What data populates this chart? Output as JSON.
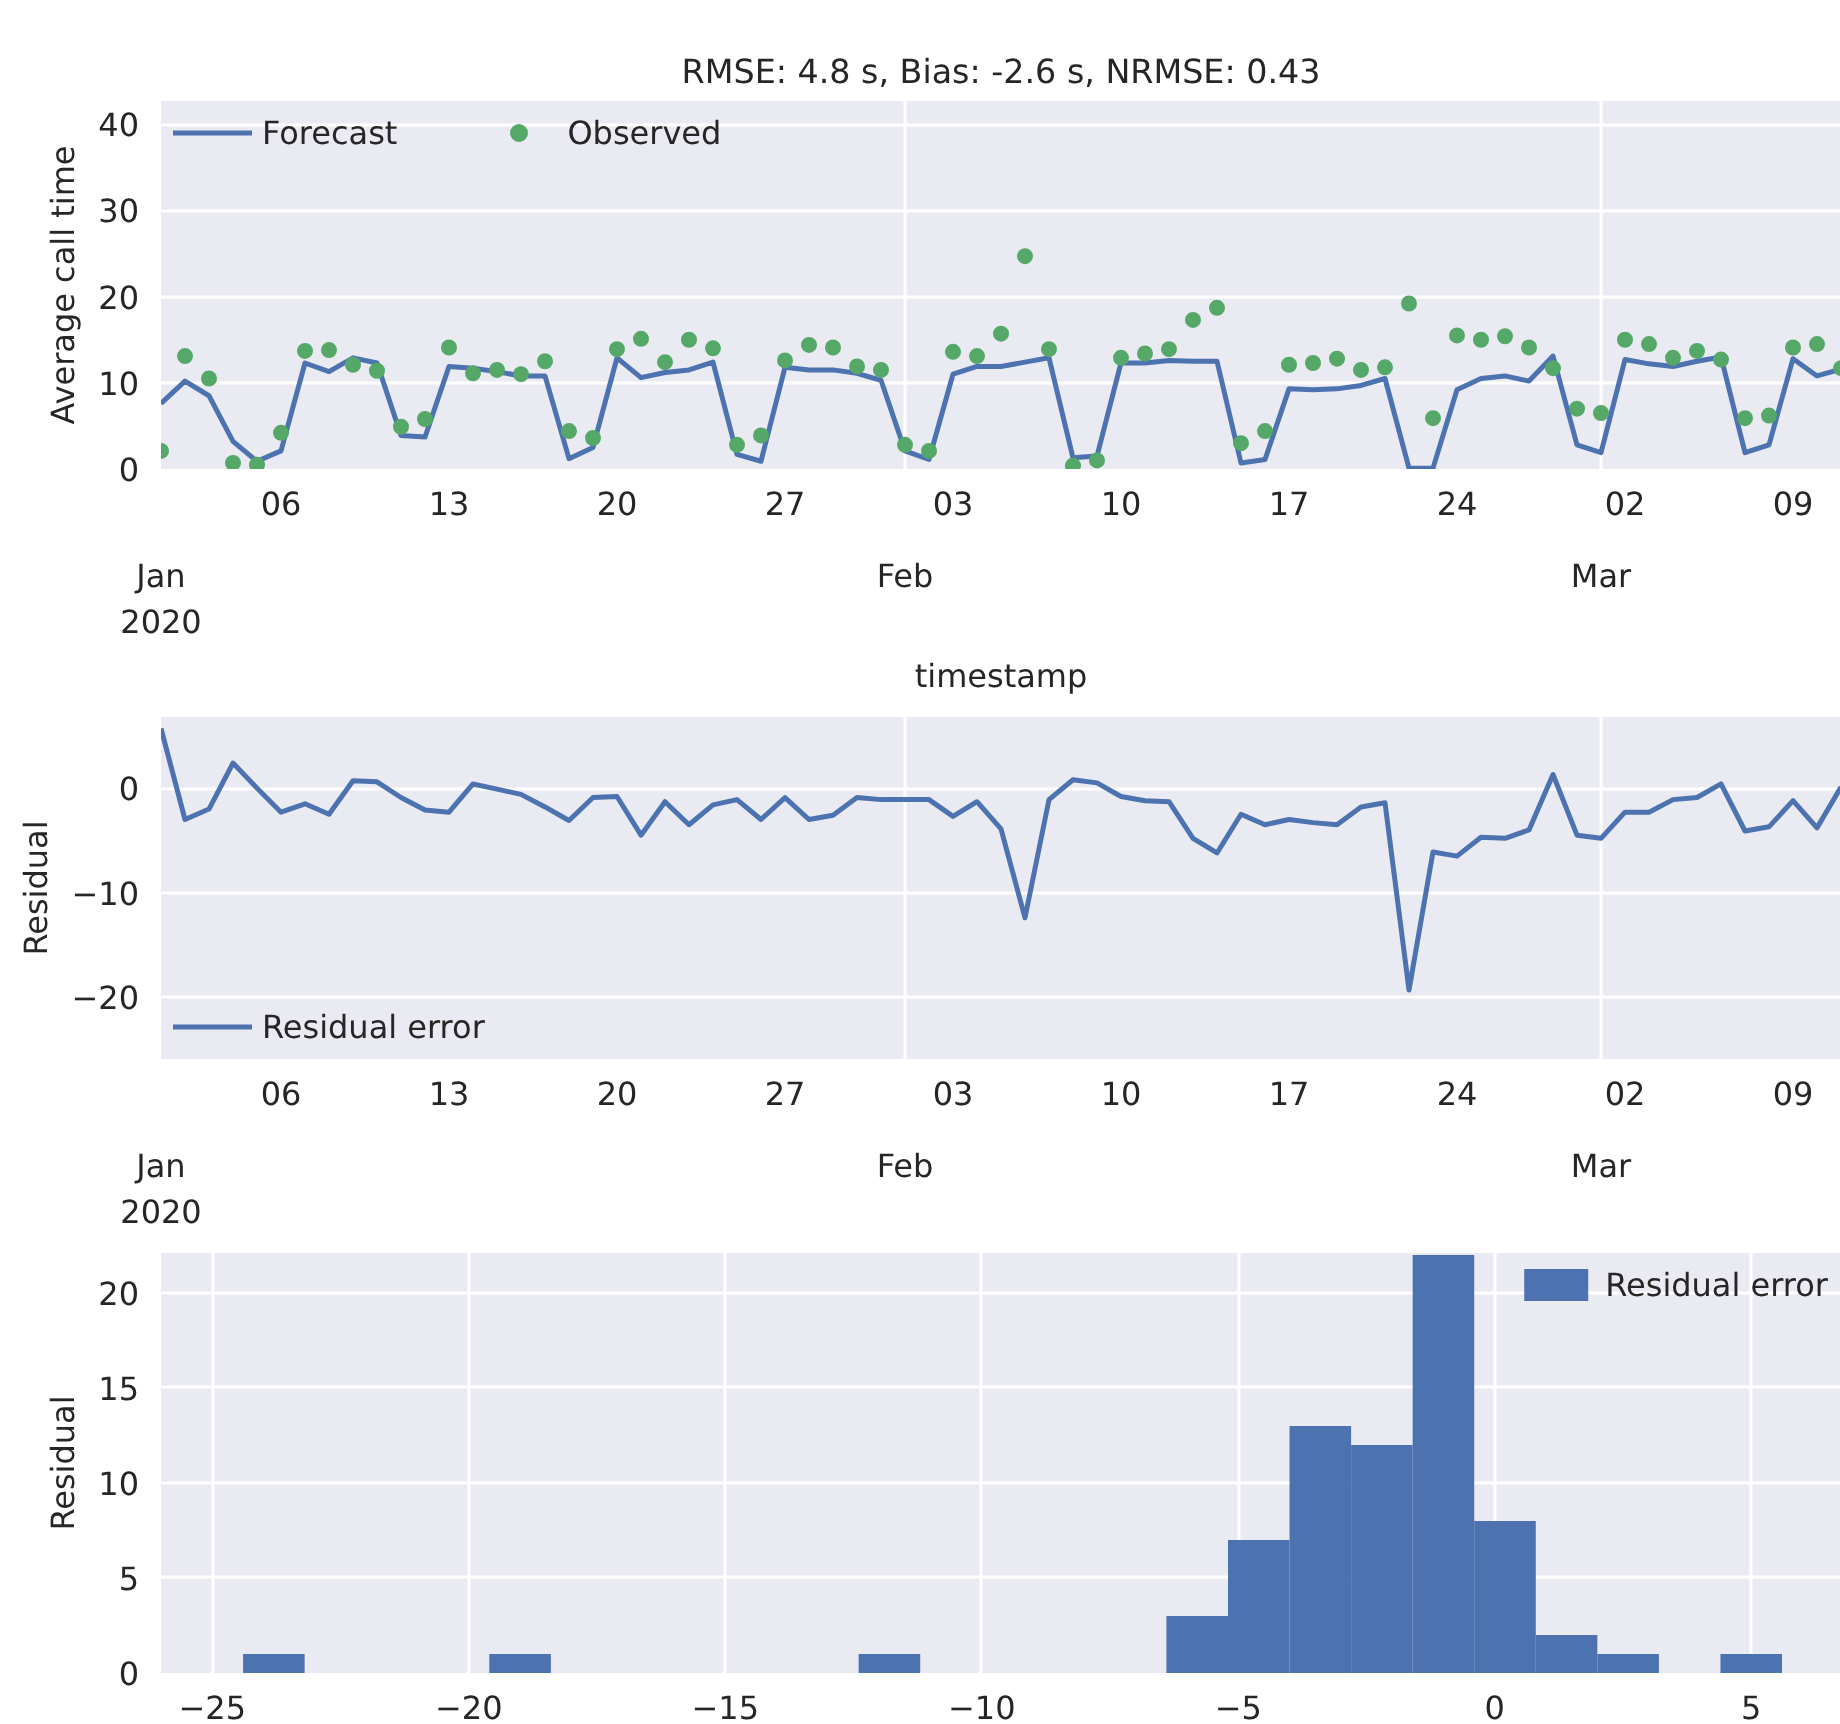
{
  "chart_data": [
    {
      "type": "line",
      "title": "RMSE: 4.8 s, Bias: -2.6 s, NRMSE: 0.43",
      "xlabel": "timestamp",
      "ylabel": "Average call time",
      "x": [
        "2020-01-01",
        "2020-01-02",
        "2020-01-03",
        "2020-01-04",
        "2020-01-05",
        "2020-01-06",
        "2020-01-07",
        "2020-01-08",
        "2020-01-09",
        "2020-01-10",
        "2020-01-11",
        "2020-01-12",
        "2020-01-13",
        "2020-01-14",
        "2020-01-15",
        "2020-01-16",
        "2020-01-17",
        "2020-01-18",
        "2020-01-19",
        "2020-01-20",
        "2020-01-21",
        "2020-01-22",
        "2020-01-23",
        "2020-01-24",
        "2020-01-25",
        "2020-01-26",
        "2020-01-27",
        "2020-01-28",
        "2020-01-29",
        "2020-01-30",
        "2020-01-31",
        "2020-02-01",
        "2020-02-02",
        "2020-02-03",
        "2020-02-04",
        "2020-02-05",
        "2020-02-06",
        "2020-02-07",
        "2020-02-08",
        "2020-02-09",
        "2020-02-10",
        "2020-02-11",
        "2020-02-12",
        "2020-02-13",
        "2020-02-14",
        "2020-02-15",
        "2020-02-16",
        "2020-02-17",
        "2020-02-18",
        "2020-02-19",
        "2020-02-20",
        "2020-02-21",
        "2020-02-22",
        "2020-02-23",
        "2020-02-24",
        "2020-02-25",
        "2020-02-26",
        "2020-02-27",
        "2020-02-28",
        "2020-02-29",
        "2020-03-01",
        "2020-03-02",
        "2020-03-03",
        "2020-03-04",
        "2020-03-05",
        "2020-03-06",
        "2020-03-07",
        "2020-03-08",
        "2020-03-09",
        "2020-03-10",
        "2020-03-11"
      ],
      "series": [
        {
          "name": "Forecast",
          "type": "line",
          "color": "#4c72b0",
          "values": [
            7.6,
            10.2,
            8.5,
            3.2,
            0.9,
            2.1,
            12.3,
            11.3,
            12.9,
            12.3,
            3.9,
            3.7,
            11.9,
            11.7,
            11.3,
            10.8,
            10.8,
            1.2,
            2.5,
            12.9,
            10.6,
            11.2,
            11.5,
            12.4,
            1.7,
            0.9,
            11.8,
            11.5,
            11.5,
            11.1,
            10.3,
            2.1,
            1.1,
            11.0,
            11.9,
            11.9,
            12.4,
            12.9,
            1.3,
            1.5,
            12.3,
            12.3,
            12.6,
            12.5,
            12.5,
            0.7,
            1.1,
            9.3,
            9.2,
            9.3,
            9.7,
            10.5,
            0.1,
            0.1,
            9.2,
            10.5,
            10.8,
            10.2,
            13.1,
            2.8,
            1.9,
            12.7,
            12.2,
            11.9,
            12.5,
            13.0,
            1.9,
            2.8,
            12.8,
            10.8,
            11.6
          ]
        },
        {
          "name": "Observed",
          "type": "scatter",
          "marker": "circle",
          "color": "#55a868",
          "values": [
            2.1,
            13.1,
            10.5,
            0.7,
            0.5,
            4.2,
            13.7,
            13.8,
            12.1,
            11.4,
            4.9,
            5.8,
            14.1,
            11.1,
            11.5,
            11.0,
            12.5,
            4.4,
            3.6,
            13.9,
            15.1,
            12.4,
            15.0,
            14.0,
            2.8,
            3.9,
            12.6,
            14.4,
            14.1,
            11.9,
            11.5,
            2.8,
            2.1,
            13.6,
            13.1,
            15.7,
            24.7,
            13.9,
            0.4,
            1.0,
            12.9,
            13.4,
            13.9,
            17.3,
            18.7,
            3.0,
            4.4,
            12.1,
            12.3,
            12.8,
            11.5,
            11.8,
            19.2,
            5.9,
            15.5,
            15.0,
            15.4,
            14.1,
            11.7,
            7.0,
            6.5,
            15.0,
            14.5,
            12.9,
            13.7,
            12.7,
            5.9,
            6.2,
            14.1,
            14.5,
            11.7
          ]
        }
      ],
      "xlim": [
        "2020-01-01",
        "2020-03-11"
      ],
      "xticks": [
        {
          "value": "2020-01-06",
          "label": "06"
        },
        {
          "value": "2020-01-13",
          "label": "13"
        },
        {
          "value": "2020-01-20",
          "label": "20"
        },
        {
          "value": "2020-01-27",
          "label": "27"
        },
        {
          "value": "2020-02-03",
          "label": "03"
        },
        {
          "value": "2020-02-10",
          "label": "10"
        },
        {
          "value": "2020-02-17",
          "label": "17"
        },
        {
          "value": "2020-02-24",
          "label": "24"
        },
        {
          "value": "2020-03-02",
          "label": "02"
        },
        {
          "value": "2020-03-09",
          "label": "09"
        }
      ],
      "x2lim": [
        "2020-01-01",
        "2020-03-11"
      ],
      "x2ticks": [
        {
          "value": "2020-01-01",
          "label": "Jan\n2020"
        },
        {
          "value": "2020-02-01",
          "label": "Feb"
        },
        {
          "value": "2020-03-01",
          "label": "Mar"
        }
      ],
      "ylim": [
        0,
        42.7
      ],
      "yticks": [
        0,
        10,
        20,
        30,
        40
      ],
      "grid": true,
      "legend": "top left"
    },
    {
      "type": "line",
      "ylabel": "Residual",
      "x": [
        "2020-01-01",
        "2020-01-02",
        "2020-01-03",
        "2020-01-04",
        "2020-01-05",
        "2020-01-06",
        "2020-01-07",
        "2020-01-08",
        "2020-01-09",
        "2020-01-10",
        "2020-01-11",
        "2020-01-12",
        "2020-01-13",
        "2020-01-14",
        "2020-01-15",
        "2020-01-16",
        "2020-01-17",
        "2020-01-18",
        "2020-01-19",
        "2020-01-20",
        "2020-01-21",
        "2020-01-22",
        "2020-01-23",
        "2020-01-24",
        "2020-01-25",
        "2020-01-26",
        "2020-01-27",
        "2020-01-28",
        "2020-01-29",
        "2020-01-30",
        "2020-01-31",
        "2020-02-01",
        "2020-02-02",
        "2020-02-03",
        "2020-02-04",
        "2020-02-05",
        "2020-02-06",
        "2020-02-07",
        "2020-02-08",
        "2020-02-09",
        "2020-02-10",
        "2020-02-11",
        "2020-02-12",
        "2020-02-13",
        "2020-02-14",
        "2020-02-15",
        "2020-02-16",
        "2020-02-17",
        "2020-02-18",
        "2020-02-19",
        "2020-02-20",
        "2020-02-21",
        "2020-02-22",
        "2020-02-23",
        "2020-02-24",
        "2020-02-25",
        "2020-02-26",
        "2020-02-27",
        "2020-02-28",
        "2020-02-29",
        "2020-03-01",
        "2020-03-02",
        "2020-03-03",
        "2020-03-04",
        "2020-03-05",
        "2020-03-06",
        "2020-03-07",
        "2020-03-08",
        "2020-03-09",
        "2020-03-10",
        "2020-03-11"
      ],
      "series": [
        {
          "name": "Residual error",
          "color": "#4c72b0",
          "values": [
            5.7,
            -3.0,
            -2.0,
            2.4,
            0,
            -2.3,
            -1.5,
            -2.5,
            0.7,
            0.6,
            -0.9,
            -2.1,
            -2.3,
            0.4,
            -0.1,
            -0.6,
            -1.8,
            -3.1,
            -0.9,
            -0.8,
            -4.5,
            -1.3,
            -3.5,
            -1.6,
            -1.1,
            -3.0,
            -0.9,
            -3.0,
            -2.6,
            -0.9,
            -1.1,
            -1.1,
            -1.1,
            -2.7,
            -1.3,
            -3.9,
            -12.4,
            -1.1,
            0.8,
            0.5,
            -0.8,
            -1.2,
            -1.3,
            -4.8,
            -6.2,
            -2.5,
            -3.5,
            -3.0,
            -3.3,
            -3.5,
            -1.8,
            -1.4,
            -19.3,
            -6.1,
            -6.5,
            -4.7,
            -4.8,
            -4.0,
            1.3,
            -4.5,
            -4.8,
            -2.3,
            -2.3,
            -1.1,
            -0.9,
            0.4,
            -4.1,
            -3.7,
            -1.2,
            -3.8,
            0.1
          ]
        }
      ],
      "xlim": [
        "2020-01-01",
        "2020-03-11"
      ],
      "xticks": [
        {
          "value": "2020-01-06",
          "label": "06"
        },
        {
          "value": "2020-01-13",
          "label": "13"
        },
        {
          "value": "2020-01-20",
          "label": "20"
        },
        {
          "value": "2020-01-27",
          "label": "27"
        },
        {
          "value": "2020-02-03",
          "label": "03"
        },
        {
          "value": "2020-02-10",
          "label": "10"
        },
        {
          "value": "2020-02-17",
          "label": "17"
        },
        {
          "value": "2020-02-24",
          "label": "24"
        },
        {
          "value": "2020-03-02",
          "label": "02"
        },
        {
          "value": "2020-03-09",
          "label": "09"
        }
      ],
      "x2lim": [
        "2020-01-01",
        "2020-03-11"
      ],
      "x2ticks": [
        {
          "value": "2020-01-01",
          "label": "Jan\n2020"
        },
        {
          "value": "2020-02-01",
          "label": "Feb"
        },
        {
          "value": "2020-03-01",
          "label": "Mar"
        }
      ],
      "ylim": [
        -25.9,
        6.8
      ],
      "yticks": [
        {
          "value": -20,
          "label": "−20"
        },
        {
          "value": -10,
          "label": "−10"
        },
        0
      ],
      "grid": true,
      "legend": "bottom left"
    },
    {
      "type": "histogram",
      "ylabel": "Residual",
      "series": [
        {
          "name": "Residual error",
          "color": "#4c72b0",
          "values": [
            1,
            0,
            0,
            0,
            1,
            0,
            0,
            0,
            0,
            0,
            1,
            0,
            0,
            0,
            0,
            3,
            7,
            13,
            12,
            22,
            8,
            2,
            1,
            0,
            1
          ]
        }
      ],
      "bins": [
        -24.4,
        -23.2,
        -22.0,
        -20.8,
        -19.6,
        -18.4,
        -17.2,
        -16.0,
        -14.8,
        -13.6,
        -12.4,
        -11.2,
        -10.0,
        -8.8,
        -7.6,
        -6.4,
        -5.2,
        -4.0,
        -2.8,
        -1.6,
        -0.4,
        0.8,
        2.0,
        3.2,
        4.4,
        5.6
      ],
      "xlim": [
        -26.0,
        6.75
      ],
      "xticks": [
        {
          "value": -25,
          "label": "−25"
        },
        {
          "value": -20,
          "label": "−20"
        },
        {
          "value": -15,
          "label": "−15"
        },
        {
          "value": -10,
          "label": "−10"
        },
        {
          "value": -5,
          "label": "−5"
        },
        0,
        5
      ],
      "ylim": [
        0,
        22.1
      ],
      "yticks": [
        0,
        5,
        10,
        15,
        20
      ],
      "grid": true,
      "legend": "top right"
    }
  ]
}
